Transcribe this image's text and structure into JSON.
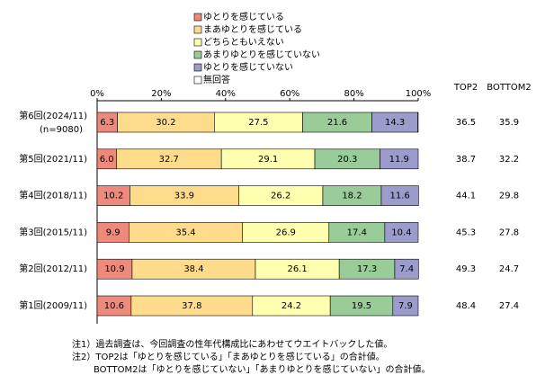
{
  "chart_data": {
    "type": "stacked-bar-horizontal",
    "categories": [
      "第6回(2024/11)",
      "第5回(2021/11)",
      "第4回(2018/11)",
      "第3回(2015/11)",
      "第2回(2012/11)",
      "第1回(2009/11)"
    ],
    "sample_note": "(n=9080)",
    "series": [
      {
        "name": "ゆとりを感じている",
        "color": "#ee8a7c",
        "values": [
          6.3,
          6.0,
          10.2,
          9.9,
          10.9,
          10.6
        ],
        "value_labels": [
          "6.3",
          "6.0",
          "10.2",
          "9.9",
          "10.9",
          "10.6"
        ]
      },
      {
        "name": "まあゆとりを感じている",
        "color": "#ffdc8c",
        "values": [
          30.2,
          32.7,
          33.9,
          35.4,
          38.4,
          37.8
        ],
        "value_labels": [
          "30.2",
          "32.7",
          "33.9",
          "35.4",
          "38.4",
          "37.8"
        ]
      },
      {
        "name": "どちらともいえない",
        "color": "#ffffb0",
        "values": [
          27.5,
          29.1,
          26.2,
          26.9,
          26.1,
          24.2
        ],
        "value_labels": [
          "27.5",
          "29.1",
          "26.2",
          "26.9",
          "26.1",
          "24.2"
        ]
      },
      {
        "name": "あまりゆとりを感じていない",
        "color": "#99cc99",
        "values": [
          21.6,
          20.3,
          18.2,
          17.4,
          17.3,
          19.5
        ],
        "value_labels": [
          "21.6",
          "20.3",
          "18.2",
          "17.4",
          "17.3",
          "19.5"
        ]
      },
      {
        "name": "ゆとりを感じていない",
        "color": "#9c9ccc",
        "values": [
          14.3,
          11.9,
          11.6,
          10.4,
          7.4,
          7.9
        ],
        "value_labels": [
          "14.3",
          "11.9",
          "11.6",
          "10.4",
          "7.4",
          "7.9"
        ]
      },
      {
        "name": "無回答",
        "color": "#ffffff",
        "values": [
          0.1,
          0,
          0,
          0,
          0,
          0
        ]
      }
    ],
    "xlim": [
      0,
      100
    ],
    "xticks": [
      {
        "value": 0,
        "label": "0%"
      },
      {
        "value": 20,
        "label": "20%"
      },
      {
        "value": 40,
        "label": "40%"
      },
      {
        "value": 60,
        "label": "60%"
      },
      {
        "value": 80,
        "label": "80%"
      },
      {
        "value": 100,
        "label": "100%"
      }
    ],
    "summary": {
      "headers": [
        "TOP2",
        "BOTTOM2"
      ],
      "top2": [
        36.5,
        38.7,
        44.1,
        45.3,
        49.3,
        48.4
      ],
      "bottom2": [
        35.9,
        32.2,
        29.8,
        27.8,
        24.7,
        27.4
      ]
    },
    "notes": [
      "注1）過去調査は、今回調査の性年代構成比にあわせてウエイトバックした値。",
      "注2）TOP2は「ゆとりを感じている」「まあゆとりを感じている」の合計値。",
      "BOTTOM2は「ゆとりを感じていない」「あまりゆとりを感じていない」の合計値。"
    ]
  }
}
